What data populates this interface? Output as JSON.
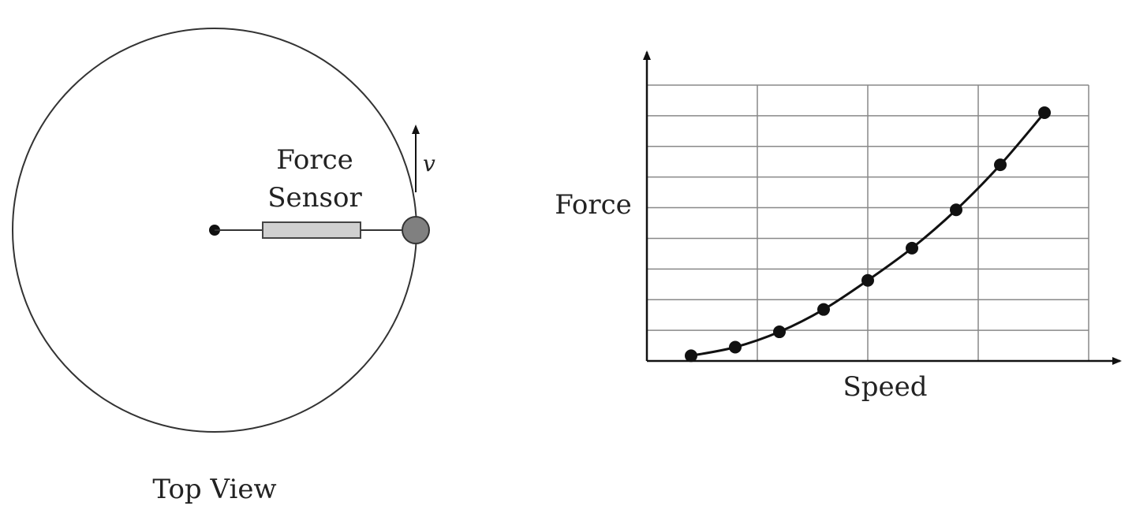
{
  "top_view": {
    "sensor_label_line1": "Force",
    "sensor_label_line2": "Sensor",
    "velocity_label": "v",
    "caption": "Top View"
  },
  "graph": {
    "ylabel": "Force",
    "xlabel": "Speed"
  },
  "chart_data": {
    "type": "scatter",
    "title": "",
    "xlabel": "Speed",
    "ylabel": "Force",
    "x_gridlines": 4,
    "y_gridlines": 9,
    "grid": true,
    "xlim": [
      0,
      4
    ],
    "ylim": [
      0,
      9
    ],
    "x": [
      0.4,
      0.8,
      1.2,
      1.6,
      2.0,
      2.4,
      2.8,
      3.2,
      3.6
    ],
    "y": [
      0.17,
      0.45,
      0.95,
      1.68,
      2.63,
      3.68,
      4.93,
      6.4,
      8.1
    ],
    "trend_curve": "smooth curve through points"
  }
}
